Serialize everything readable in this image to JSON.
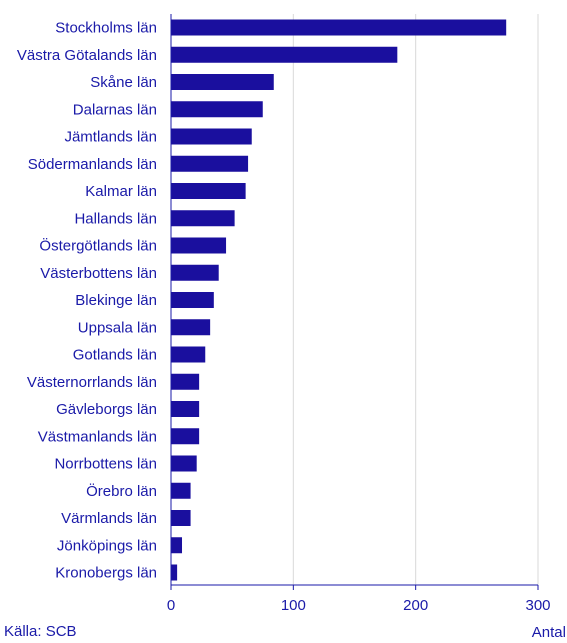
{
  "chart_data": {
    "type": "bar",
    "orientation": "horizontal",
    "categories": [
      "Stockholms län",
      "Västra Götalands län",
      "Skåne län",
      "Dalarnas län",
      "Jämtlands län",
      "Södermanlands län",
      "Kalmar län",
      "Hallands län",
      "Östergötlands län",
      "Västerbottens län",
      "Blekinge län",
      "Uppsala län",
      "Gotlands län",
      "Västernorrlands län",
      "Gävleborgs län",
      "Västmanlands län",
      "Norrbottens län",
      "Örebro län",
      "Värmlands län",
      "Jönköpings län",
      "Kronobergs län"
    ],
    "values": [
      274,
      185,
      84,
      75,
      66,
      63,
      61,
      52,
      45,
      39,
      35,
      32,
      28,
      23,
      23,
      23,
      21,
      16,
      16,
      9,
      5
    ],
    "xlabel": "Antal",
    "ylabel": "",
    "xlim": [
      0,
      300
    ],
    "xticks": [
      0,
      100,
      200,
      300
    ],
    "grid": "vertical",
    "source": "Källa: SCB",
    "colors": {
      "bar": "#1a0f9e",
      "text": "#1a1aa8",
      "grid": "#d9d9d9",
      "axis": "#1a1aa8"
    }
  }
}
